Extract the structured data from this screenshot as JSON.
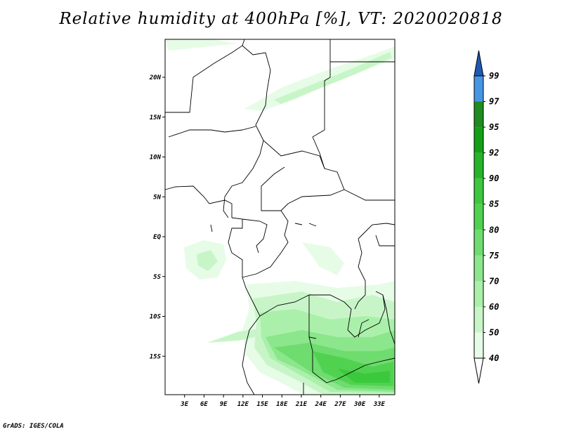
{
  "title": "Relative humidity at 400hPa [%], VT: 2020020818",
  "footer": "GrADS: IGES/COLA",
  "map": {
    "lat_labels": [
      {
        "lat": 20,
        "label": "20N"
      },
      {
        "lat": 15,
        "label": "15N"
      },
      {
        "lat": 10,
        "label": "10N"
      },
      {
        "lat": 5,
        "label": "5N"
      },
      {
        "lat": 0,
        "label": "EQ"
      },
      {
        "lat": -5,
        "label": "5S"
      },
      {
        "lat": -10,
        "label": "10S"
      },
      {
        "lat": -15,
        "label": "15S"
      }
    ],
    "lon_labels": [
      {
        "lon": 3,
        "label": "3E"
      },
      {
        "lon": 6,
        "label": "6E"
      },
      {
        "lon": 9,
        "label": "9E"
      },
      {
        "lon": 12,
        "label": "12E"
      },
      {
        "lon": 15,
        "label": "15E"
      },
      {
        "lon": 18,
        "label": "18E"
      },
      {
        "lon": 21,
        "label": "21E"
      },
      {
        "lon": 24,
        "label": "24E"
      },
      {
        "lon": 27,
        "label": "27E"
      },
      {
        "lon": 30,
        "label": "30E"
      },
      {
        "lon": 33,
        "label": "33E"
      }
    ]
  },
  "colorbar": {
    "levels": [
      "40",
      "50",
      "60",
      "70",
      "75",
      "80",
      "85",
      "90",
      "92",
      "95",
      "97",
      "99"
    ],
    "colors": [
      "#e6fce6",
      "#c8f5c8",
      "#aaf0aa",
      "#8ce68c",
      "#6edc6e",
      "#50d250",
      "#3cc83c",
      "#28b428",
      "#14a014",
      "#1e8c1e",
      "#4696e6",
      "#2878d2",
      "#1e5ab4"
    ]
  }
}
